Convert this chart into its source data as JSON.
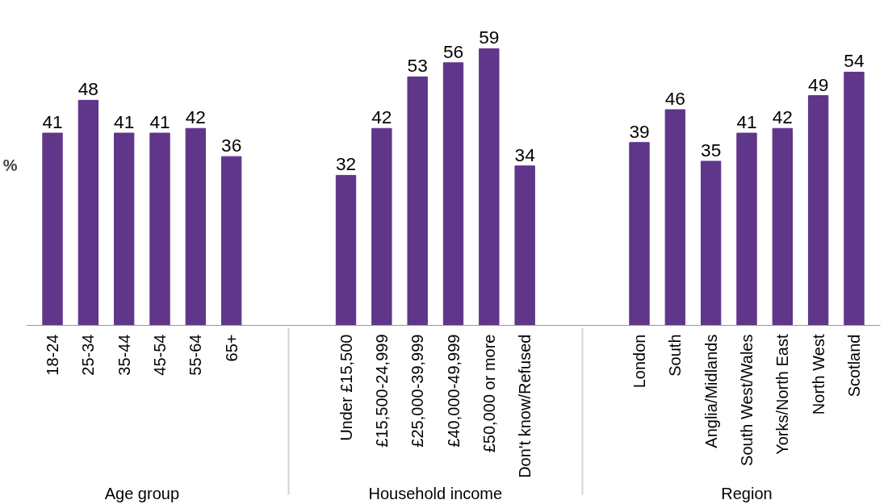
{
  "chart_data": {
    "type": "bar",
    "ylabel": "%",
    "color": "#5f3689",
    "data_labels": true,
    "grid": false,
    "categories": [
      "18-24",
      "25-34",
      "35-44",
      "45-54",
      "55-64",
      "65+",
      null,
      "Under £15,500",
      "£15,500-24,999",
      "£25,000-39,999",
      "£40,000-49,999",
      "£50,000 or more",
      "Don't know/Refused",
      null,
      "London",
      "South",
      "Anglia/Midlands",
      "South West/Wales",
      "Yorks/North East",
      "North West",
      "Scotland"
    ],
    "values": [
      41,
      48,
      41,
      41,
      42,
      36,
      null,
      32,
      42,
      53,
      56,
      59,
      34,
      null,
      39,
      46,
      35,
      41,
      42,
      49,
      54
    ],
    "annotations": [
      "Age group",
      "Household income",
      "Region"
    ]
  }
}
